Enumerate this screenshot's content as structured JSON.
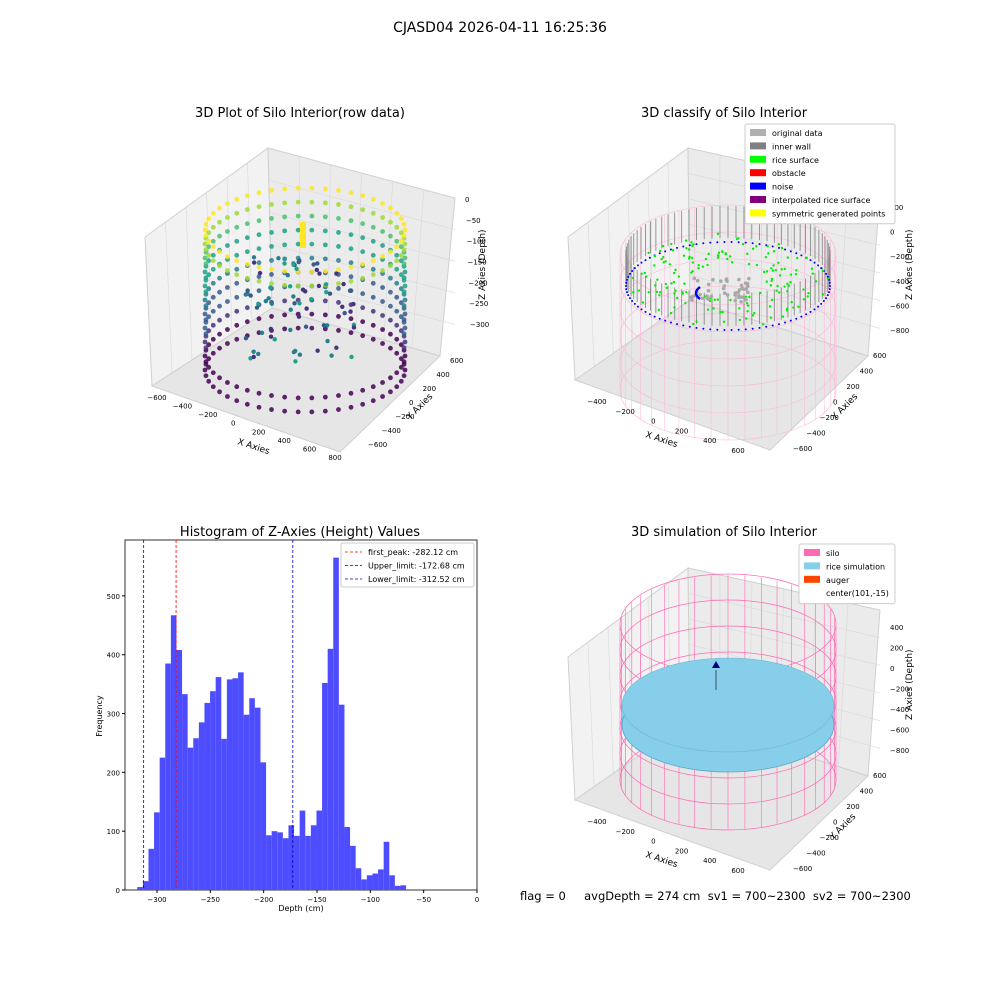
{
  "figure_title": "CJASD04 2026-04-11 16:25:36",
  "footer_text": "flag = 0     avgDepth = 274 cm  sv1 = 700~2300  sv2 = 700~2300",
  "colors": {
    "hist_bar": "#4d4dff",
    "first_peak": "#ff0000",
    "limit": "#0000cc",
    "grid": "#d8d8d8",
    "pane": "#f2f2f2",
    "silo_wire": "#ff69b4",
    "rice_sim": "#87ceeb"
  },
  "panel_raw": {
    "title": "3D Plot of Silo Interior(row data)",
    "xlabel": "X Axies",
    "ylabel": "Y Axies",
    "zlabel": "Z Axies (Depth)",
    "xticks": [
      "−600",
      "−400",
      "−200",
      "0",
      "200",
      "400",
      "600",
      "800"
    ],
    "yticks": [
      "600",
      "400",
      "200",
      "0",
      "−200",
      "−400",
      "−600"
    ],
    "zticks": [
      "0",
      "−50",
      "−100",
      "−150",
      "−200",
      "−250",
      "−300"
    ],
    "colormap": "viridis"
  },
  "panel_classify": {
    "title": "3D classify of Silo Interior",
    "xlabel": "X Axies",
    "ylabel": "Y Axies",
    "zlabel": "Z Axies (Depth)",
    "xticks": [
      "−400",
      "−200",
      "0",
      "200",
      "400",
      "600"
    ],
    "yticks": [
      "600",
      "400",
      "200",
      "0",
      "−200",
      "−400",
      "−600"
    ],
    "zticks": [
      "200",
      "0",
      "−200",
      "−400",
      "−600",
      "−800"
    ],
    "legend": [
      {
        "label": "original data",
        "color": "#b0b0b0"
      },
      {
        "label": "inner wall",
        "color": "#808080"
      },
      {
        "label": "rice surface",
        "color": "#00ff00"
      },
      {
        "label": "obstacle",
        "color": "#ff0000"
      },
      {
        "label": "noise",
        "color": "#0000ff"
      },
      {
        "label": "interpolated rice surface",
        "color": "#800080"
      },
      {
        "label": "symmetric generated points",
        "color": "#ffff00"
      }
    ]
  },
  "panel_sim": {
    "title": "3D simulation of Silo Interior",
    "xlabel": "X Axies",
    "ylabel": "Y Axies",
    "zlabel": "Z Axies (Depth)",
    "xticks": [
      "−400",
      "−200",
      "0",
      "200",
      "400",
      "600"
    ],
    "yticks": [
      "600",
      "400",
      "200",
      "0",
      "−200",
      "−400",
      "−600"
    ],
    "zticks": [
      "400",
      "200",
      "0",
      "−200",
      "−400",
      "−600",
      "−800"
    ],
    "legend": [
      {
        "label": "silo",
        "color": "#ff69b4"
      },
      {
        "label": "rice simulation",
        "color": "#87ceeb"
      },
      {
        "label": "auger",
        "color": "#ff4500"
      },
      {
        "label": "center(101,-15)",
        "color": "#ffffff"
      }
    ]
  },
  "chart_data": {
    "type": "bar",
    "title": "Histogram of Z-Axies (Height) Values",
    "xlabel": "Depth (cm)",
    "ylabel": "Frequency",
    "xlim": [
      -330,
      0
    ],
    "ylim": [
      0,
      595
    ],
    "xticks": [
      -300,
      -250,
      -200,
      -150,
      -100,
      -50,
      0
    ],
    "xtick_labels": [
      "−300",
      "−250",
      "−200",
      "−150",
      "−100",
      "−50",
      "0"
    ],
    "yticks": [
      0,
      100,
      200,
      300,
      400,
      500
    ],
    "bin_start": -318.5,
    "bin_width": 5.25,
    "values": [
      5,
      15,
      70,
      132,
      225,
      385,
      467,
      408,
      333,
      242,
      258,
      285,
      318,
      338,
      362,
      257,
      358,
      360,
      370,
      298,
      326,
      310,
      217,
      93,
      100,
      98,
      88,
      110,
      92,
      135,
      92,
      110,
      135,
      352,
      410,
      565,
      315,
      107,
      75,
      37,
      18,
      25,
      28,
      35,
      82,
      25,
      7,
      8
    ],
    "lines": [
      {
        "x": -282.12,
        "label": "first_peak: -282.12 cm",
        "color": "#ff0000"
      },
      {
        "x": -172.68,
        "label": "Upper_limit: -172.68 cm",
        "color": "#0000cc"
      },
      {
        "x": -312.52,
        "label": "Lower_limit: -312.52 cm",
        "color": "#0000cc"
      }
    ],
    "legend_position": "top-right"
  }
}
